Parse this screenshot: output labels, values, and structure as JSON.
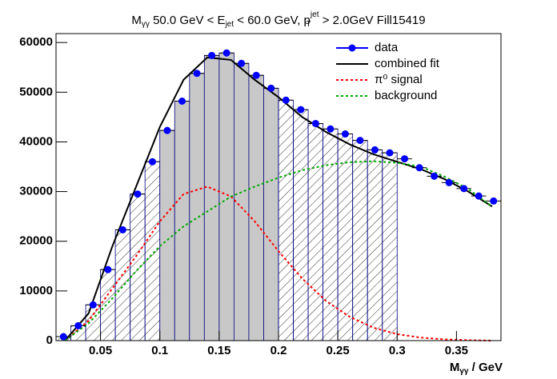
{
  "chart_data": {
    "type": "histfit",
    "title": {
      "parts": [
        "M",
        "γγ",
        " 50.0 GeV < E",
        "jet",
        " < 60.0 GeV, p",
        "jet",
        "T",
        " > 2.0GeV Fill15419"
      ]
    },
    "x_label": {
      "parts": [
        "M",
        "γγ",
        " / GeV"
      ]
    },
    "xlim": [
      0.0125,
      0.3875
    ],
    "ylim": [
      0,
      61800
    ],
    "xticks": [
      0.05,
      0.1,
      0.15,
      0.2,
      0.25,
      0.3,
      0.35
    ],
    "yticks": [
      0,
      10000,
      20000,
      30000,
      40000,
      50000,
      60000
    ],
    "bin_width": 0.0125,
    "x": [
      0.01875,
      0.03125,
      0.04375,
      0.05625,
      0.06875,
      0.08125,
      0.09375,
      0.10625,
      0.11875,
      0.13125,
      0.14375,
      0.15625,
      0.16875,
      0.18125,
      0.19375,
      0.20625,
      0.21875,
      0.23125,
      0.24375,
      0.25625,
      0.26875,
      0.28125,
      0.29375,
      0.30625,
      0.31875,
      0.33125,
      0.34375,
      0.35625,
      0.36875,
      0.38125
    ],
    "regions": [
      {
        "range": [
          0.0125,
          0.1
        ],
        "fill": "hatch"
      },
      {
        "range": [
          0.1,
          0.2
        ],
        "fill": "#c8c8c8"
      },
      {
        "range": [
          0.2,
          0.3
        ],
        "fill": "hatch"
      }
    ],
    "legend": "top-right",
    "series": [
      {
        "name": "data",
        "color": "#0000ff",
        "values": [
          800,
          3000,
          7200,
          14300,
          22300,
          29500,
          36000,
          42300,
          48200,
          53800,
          57400,
          57900,
          55800,
          53400,
          50800,
          48400,
          46500,
          43700,
          42600,
          41600,
          40300,
          38400,
          37800,
          36600,
          34800,
          33100,
          31800,
          30600,
          29100,
          28100
        ]
      },
      {
        "name": "combined fit",
        "color": "#000000",
        "dash": "none",
        "x": [
          0.02,
          0.04,
          0.06,
          0.08,
          0.1,
          0.12,
          0.14,
          0.16,
          0.18,
          0.2,
          0.22,
          0.24,
          0.26,
          0.28,
          0.3,
          0.32,
          0.34,
          0.36,
          0.38
        ],
        "values": [
          0,
          5500,
          19000,
          31000,
          43000,
          52500,
          57000,
          56500,
          52500,
          49000,
          45000,
          42000,
          39500,
          37500,
          36000,
          34500,
          32500,
          30000,
          27000
        ]
      },
      {
        "name": "π⁰ signal",
        "color": "#ff0000",
        "dash": "3,3",
        "x": [
          0.02,
          0.04,
          0.06,
          0.08,
          0.1,
          0.12,
          0.14,
          0.16,
          0.18,
          0.2,
          0.22,
          0.24,
          0.26,
          0.28,
          0.3,
          0.32,
          0.34,
          0.36,
          0.38
        ],
        "values": [
          0,
          4000,
          10500,
          17000,
          24000,
          29500,
          31000,
          29000,
          24000,
          18000,
          12500,
          8000,
          4800,
          2600,
          1300,
          600,
          250,
          100,
          0
        ]
      },
      {
        "name": "background",
        "color": "#00aa00",
        "dash": "3,3",
        "x": [
          0.02,
          0.04,
          0.06,
          0.08,
          0.1,
          0.12,
          0.14,
          0.16,
          0.18,
          0.2,
          0.22,
          0.24,
          0.26,
          0.28,
          0.3,
          0.32,
          0.34,
          0.36,
          0.38
        ],
        "values": [
          0,
          3500,
          8500,
          14000,
          19000,
          23000,
          26000,
          29000,
          31000,
          32800,
          34300,
          35300,
          35900,
          36100,
          35800,
          35000,
          33000,
          30500,
          27000
        ]
      }
    ]
  }
}
